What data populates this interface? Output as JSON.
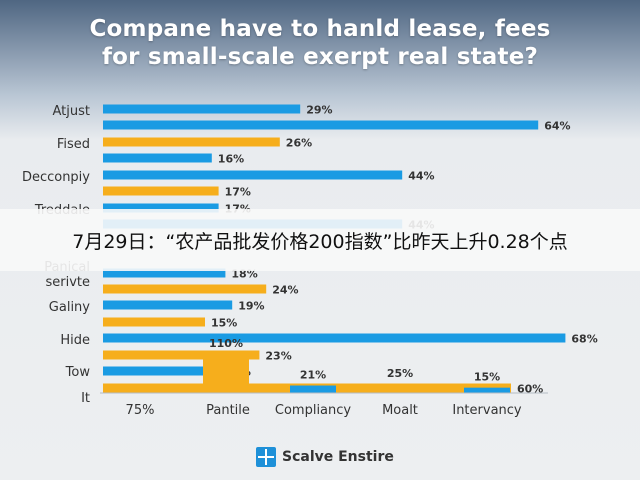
{
  "title_lines": [
    "Compane have to hanld lease, fees",
    "for small-scale exerpt real state?"
  ],
  "caption": "7月29日：“农产品批发价格200指数”比昨天上升0.28个点",
  "footer": {
    "logo_icon": "logo-grid-icon",
    "brand": "Scalve Enstire"
  },
  "chart_data": [
    {
      "type": "bar",
      "orientation": "horizontal",
      "colors": {
        "blue": "#1a9be3",
        "orange": "#f6ae1c"
      },
      "category_labels": [
        "Atjust",
        "Fised",
        "Decconpiy",
        "Treddale",
        "Panical",
        "serivte",
        "Galiny",
        "Hide",
        "Tow",
        "It"
      ],
      "bars": [
        {
          "value": 29,
          "label": "29%",
          "color": "blue"
        },
        {
          "value": 64,
          "label": "64%",
          "color": "blue"
        },
        {
          "value": 26,
          "label": "26%",
          "color": "orange"
        },
        {
          "value": 16,
          "label": "16%",
          "color": "blue"
        },
        {
          "value": 44,
          "label": "44%",
          "color": "blue"
        },
        {
          "value": 17,
          "label": "17%",
          "color": "orange"
        },
        {
          "value": 17,
          "label": "17%",
          "color": "blue"
        },
        {
          "value": 44,
          "label": "44%",
          "color": "blue"
        },
        {
          "value": 18,
          "label": "18%",
          "color": "blue"
        },
        {
          "value": 24,
          "label": "24%",
          "color": "orange"
        },
        {
          "value": 19,
          "label": "19%",
          "color": "blue"
        },
        {
          "value": 15,
          "label": "15%",
          "color": "orange"
        },
        {
          "value": 68,
          "label": "68%",
          "color": "blue"
        },
        {
          "value": 23,
          "label": "23%",
          "color": "orange"
        },
        {
          "value": 17,
          "label": "17%",
          "color": "blue"
        },
        {
          "value": 60,
          "label": "60%",
          "color": "orange"
        }
      ]
    },
    {
      "type": "bar",
      "orientation": "vertical",
      "categories": [
        "75%",
        "Pantile",
        "Compliancy",
        "Moalt",
        "Intervancy"
      ],
      "bars": [
        {
          "category": "Pantile",
          "value": 110,
          "label": "110%",
          "color": "orange"
        },
        {
          "category": "Compliancy",
          "value": 21,
          "label": "21%",
          "color": "blue"
        },
        {
          "category": "Moalt",
          "value": 25,
          "label": "25%",
          "color": "orange"
        },
        {
          "category": "Intervancy",
          "value": 15,
          "label": "15%",
          "color": "blue"
        }
      ]
    }
  ]
}
